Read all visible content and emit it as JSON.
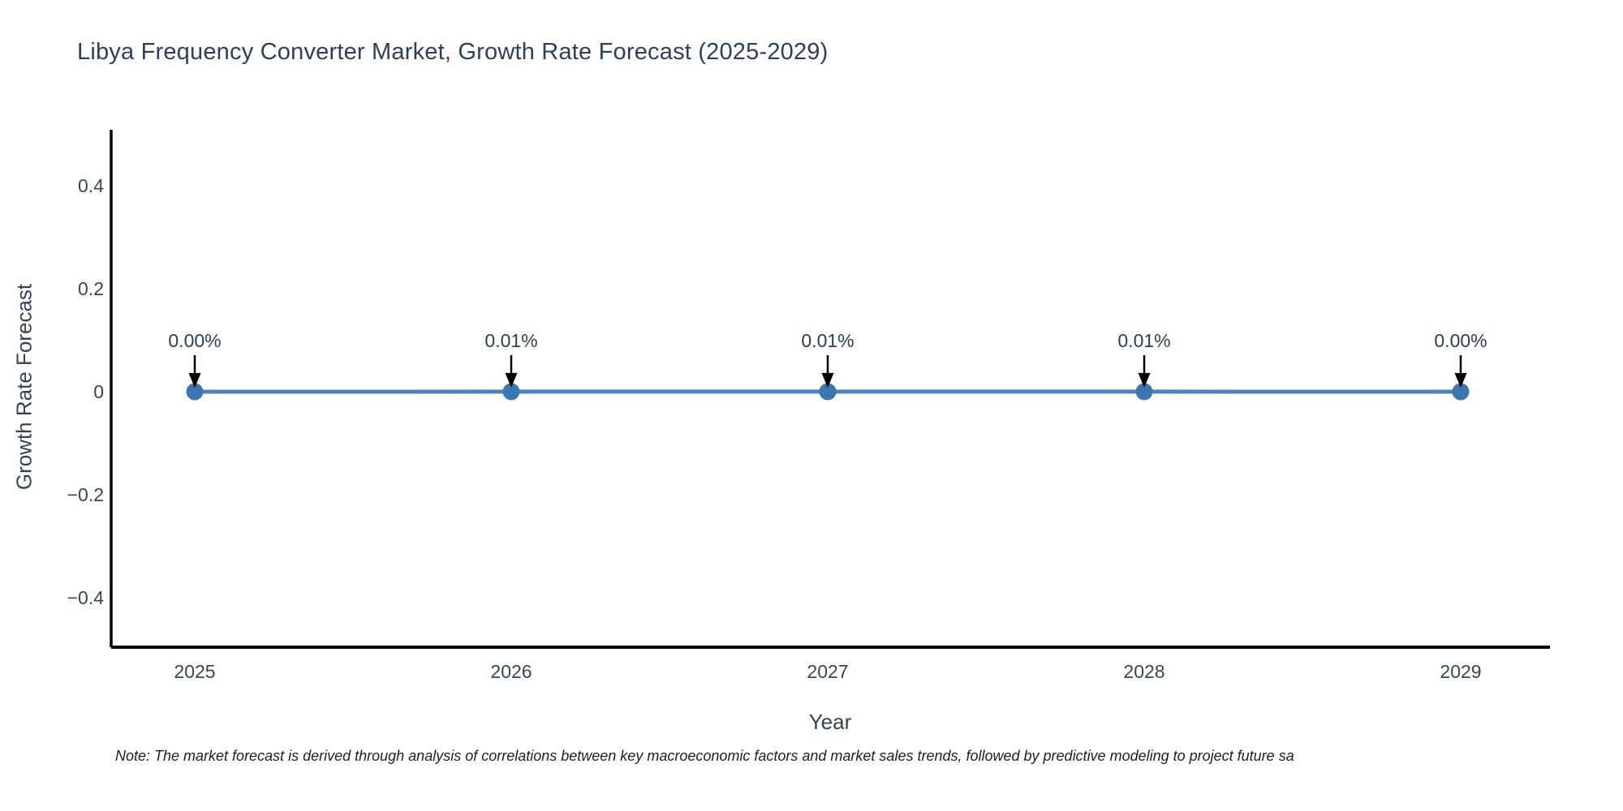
{
  "page": {
    "background": "#ffffff"
  },
  "chart_data": {
    "type": "line",
    "title": "Libya Frequency Converter Market, Growth Rate Forecast (2025-2029)",
    "xlabel": "Year",
    "ylabel": "Growth Rate Forecast",
    "categories": [
      "2025",
      "2026",
      "2027",
      "2028",
      "2029"
    ],
    "series": [
      {
        "name": "Growth Rate Forecast",
        "values_percent": [
          0.0,
          0.01,
          0.01,
          0.01,
          0.0
        ]
      }
    ],
    "point_labels": [
      "0.00%",
      "0.01%",
      "0.01%",
      "0.01%",
      "0.00%"
    ],
    "yticks": [
      0.4,
      0.2,
      0,
      -0.2,
      -0.4
    ],
    "ytick_labels": [
      "0.4",
      "0.2",
      "0",
      "−0.2",
      "−0.4"
    ],
    "ylim": [
      -0.5,
      0.51
    ],
    "grid": false,
    "legend_position": "none",
    "annotations_have_arrows": true,
    "colors": {
      "line": "#4d83ba",
      "marker": "#3c75b0",
      "axis": "#000000",
      "tick_text": "#3a4556",
      "title_text": "#2d3f5e",
      "annotation_text": "#2e3e54",
      "arrow": "#000000"
    }
  },
  "note": {
    "text": "Note: The market forecast is derived through analysis of correlations between key macroeconomic factors and market sales trends, followed by predictive modeling to project future sa"
  }
}
